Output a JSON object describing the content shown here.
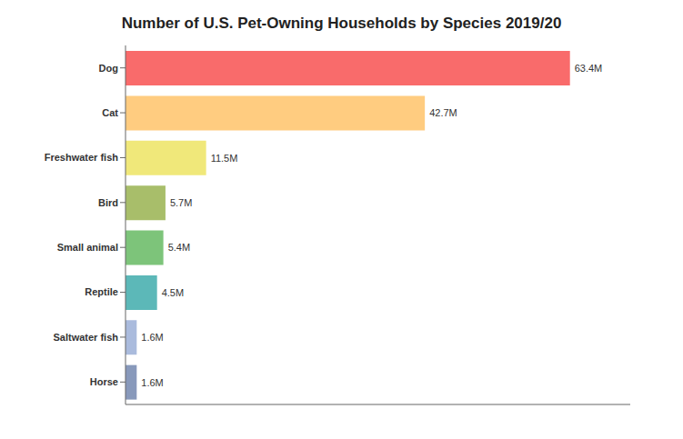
{
  "chart_data": {
    "type": "bar",
    "title": "Number of U.S. Pet-Owning Households by Species 2019/20",
    "orientation": "horizontal",
    "categories": [
      "Dog",
      "Cat",
      "Freshwater fish",
      "Bird",
      "Small animal",
      "Reptile",
      "Saltwater fish",
      "Horse"
    ],
    "values": [
      63.4,
      42.7,
      11.5,
      5.7,
      5.4,
      4.5,
      1.6,
      1.6
    ],
    "value_labels": [
      "63.4M",
      "42.7M",
      "11.5M",
      "5.7M",
      "5.4M",
      "4.5M",
      "1.6M",
      "1.6M"
    ],
    "colors": [
      "#F96B6B",
      "#FFCC80",
      "#F0E87A",
      "#A8BE6A",
      "#7DC47A",
      "#5CB8B8",
      "#AABBDD",
      "#8899BB"
    ],
    "xlim": [
      0,
      72
    ],
    "data_labels": true,
    "tick_labels": "y",
    "grid": false
  }
}
